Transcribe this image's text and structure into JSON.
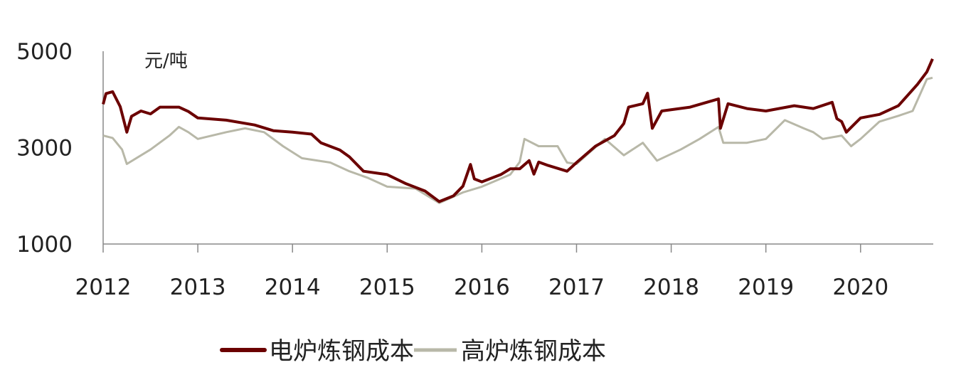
{
  "chart_data": {
    "type": "line",
    "unit_label": "元/吨",
    "xlim": [
      2012,
      2020.78
    ],
    "ylim": [
      1000,
      5000
    ],
    "x_ticks": [
      "2012",
      "2013",
      "2014",
      "2015",
      "2016",
      "2017",
      "2018",
      "2019",
      "2020"
    ],
    "y_ticks": [
      "1000",
      "3000",
      "5000"
    ],
    "grid": false,
    "legend_position": "bottom",
    "series": [
      {
        "name": "电炉炼钢成本",
        "color": "#6b0000",
        "points": [
          [
            2012.0,
            3900
          ],
          [
            2012.03,
            4120
          ],
          [
            2012.1,
            4160
          ],
          [
            2012.18,
            3850
          ],
          [
            2012.25,
            3320
          ],
          [
            2012.3,
            3650
          ],
          [
            2012.4,
            3760
          ],
          [
            2012.5,
            3700
          ],
          [
            2012.6,
            3840
          ],
          [
            2012.8,
            3840
          ],
          [
            2012.9,
            3750
          ],
          [
            2013.0,
            3615
          ],
          [
            2013.3,
            3570
          ],
          [
            2013.6,
            3470
          ],
          [
            2013.8,
            3350
          ],
          [
            2014.0,
            3320
          ],
          [
            2014.2,
            3280
          ],
          [
            2014.3,
            3100
          ],
          [
            2014.5,
            2950
          ],
          [
            2014.6,
            2810
          ],
          [
            2014.75,
            2510
          ],
          [
            2015.0,
            2440
          ],
          [
            2015.2,
            2250
          ],
          [
            2015.4,
            2100
          ],
          [
            2015.55,
            1880
          ],
          [
            2015.7,
            2000
          ],
          [
            2015.8,
            2200
          ],
          [
            2015.88,
            2650
          ],
          [
            2015.92,
            2350
          ],
          [
            2016.0,
            2290
          ],
          [
            2016.2,
            2440
          ],
          [
            2016.3,
            2560
          ],
          [
            2016.4,
            2560
          ],
          [
            2016.5,
            2730
          ],
          [
            2016.55,
            2450
          ],
          [
            2016.6,
            2700
          ],
          [
            2016.7,
            2630
          ],
          [
            2016.9,
            2510
          ],
          [
            2017.0,
            2690
          ],
          [
            2017.2,
            3030
          ],
          [
            2017.4,
            3250
          ],
          [
            2017.5,
            3500
          ],
          [
            2017.55,
            3840
          ],
          [
            2017.7,
            3910
          ],
          [
            2017.75,
            4130
          ],
          [
            2017.8,
            3400
          ],
          [
            2017.9,
            3760
          ],
          [
            2018.2,
            3840
          ],
          [
            2018.5,
            4010
          ],
          [
            2018.52,
            3400
          ],
          [
            2018.6,
            3910
          ],
          [
            2018.8,
            3810
          ],
          [
            2019.0,
            3760
          ],
          [
            2019.3,
            3870
          ],
          [
            2019.5,
            3810
          ],
          [
            2019.7,
            3940
          ],
          [
            2019.75,
            3600
          ],
          [
            2019.8,
            3540
          ],
          [
            2019.85,
            3320
          ],
          [
            2020.0,
            3615
          ],
          [
            2020.2,
            3690
          ],
          [
            2020.4,
            3870
          ],
          [
            2020.6,
            4310
          ],
          [
            2020.7,
            4570
          ],
          [
            2020.76,
            4840
          ]
        ]
      },
      {
        "name": "高炉炼钢成本",
        "color": "#b8b8a8",
        "points": [
          [
            2012.0,
            3250
          ],
          [
            2012.1,
            3200
          ],
          [
            2012.2,
            2960
          ],
          [
            2012.25,
            2660
          ],
          [
            2012.5,
            2960
          ],
          [
            2012.7,
            3250
          ],
          [
            2012.8,
            3430
          ],
          [
            2012.9,
            3320
          ],
          [
            2013.0,
            3180
          ],
          [
            2013.3,
            3320
          ],
          [
            2013.5,
            3400
          ],
          [
            2013.7,
            3320
          ],
          [
            2013.9,
            3030
          ],
          [
            2014.1,
            2780
          ],
          [
            2014.4,
            2690
          ],
          [
            2014.6,
            2510
          ],
          [
            2014.8,
            2370
          ],
          [
            2015.0,
            2190
          ],
          [
            2015.3,
            2150
          ],
          [
            2015.55,
            1850
          ],
          [
            2015.8,
            2070
          ],
          [
            2016.0,
            2190
          ],
          [
            2016.3,
            2440
          ],
          [
            2016.4,
            2700
          ],
          [
            2016.45,
            3180
          ],
          [
            2016.6,
            3030
          ],
          [
            2016.8,
            3030
          ],
          [
            2016.9,
            2690
          ],
          [
            2017.0,
            2660
          ],
          [
            2017.3,
            3180
          ],
          [
            2017.5,
            2840
          ],
          [
            2017.7,
            3100
          ],
          [
            2017.85,
            2730
          ],
          [
            2018.1,
            2960
          ],
          [
            2018.3,
            3180
          ],
          [
            2018.5,
            3430
          ],
          [
            2018.55,
            3100
          ],
          [
            2018.8,
            3100
          ],
          [
            2019.0,
            3180
          ],
          [
            2019.2,
            3570
          ],
          [
            2019.4,
            3400
          ],
          [
            2019.5,
            3320
          ],
          [
            2019.6,
            3180
          ],
          [
            2019.8,
            3250
          ],
          [
            2019.9,
            3030
          ],
          [
            2020.0,
            3180
          ],
          [
            2020.2,
            3540
          ],
          [
            2020.4,
            3660
          ],
          [
            2020.55,
            3760
          ],
          [
            2020.7,
            4420
          ],
          [
            2020.76,
            4450
          ]
        ]
      }
    ]
  }
}
